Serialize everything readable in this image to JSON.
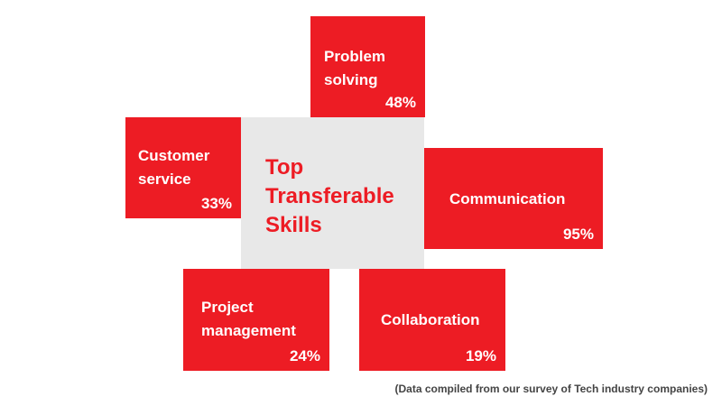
{
  "title": "Top Transferable Skills",
  "title_lines": [
    "Top",
    "Transferable",
    "Skills"
  ],
  "colors": {
    "accent": "#ed1c24",
    "center_bg": "#e8e8e8",
    "text_on_accent": "#ffffff"
  },
  "skills": [
    {
      "label_lines": [
        "Problem",
        "solving"
      ],
      "percent": "48%"
    },
    {
      "label_lines": [
        "Customer",
        "service"
      ],
      "percent": "33%"
    },
    {
      "label_lines": [
        "Communication"
      ],
      "percent": "95%"
    },
    {
      "label_lines": [
        "Project",
        "management"
      ],
      "percent": "24%"
    },
    {
      "label_lines": [
        "Collaboration"
      ],
      "percent": "19%"
    }
  ],
  "footnote": "(Data compiled from our survey of Tech industry companies)"
}
